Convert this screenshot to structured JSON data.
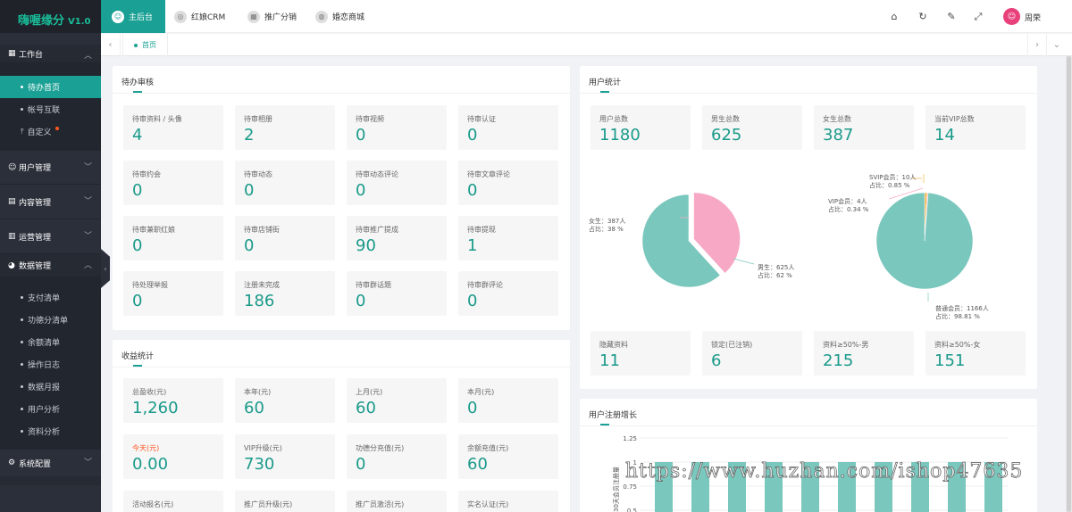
{
  "app": {
    "name": "嗨喔缘分",
    "version": "V1.0"
  },
  "sidebar": {
    "groups": [
      {
        "label": "工作台",
        "icon": "grid-icon",
        "items": [
          "待办首页",
          "帐号互联",
          "自定义"
        ]
      },
      {
        "label": "用户管理",
        "icon": "user-icon"
      },
      {
        "label": "内容管理",
        "icon": "doc-icon"
      },
      {
        "label": "运营管理",
        "icon": "chart-icon"
      },
      {
        "label": "数据管理",
        "icon": "pie-icon",
        "items": [
          "支付清单",
          "功德分清单",
          "余额清单",
          "操作日志",
          "数据月报",
          "用户分析",
          "资料分析"
        ]
      },
      {
        "label": "系统配置",
        "icon": "gear-icon"
      }
    ]
  },
  "topnav": [
    "主后台",
    "红娘CRM",
    "推广分销",
    "婚恋商城"
  ],
  "header": {
    "username": "周荣"
  },
  "tabs": {
    "home": "首页"
  },
  "pending": {
    "title": "待办审核",
    "tiles": [
      {
        "label": "待审资料 / 头像",
        "value": "4"
      },
      {
        "label": "待审相册",
        "value": "2"
      },
      {
        "label": "待审视频",
        "value": "0"
      },
      {
        "label": "待审认证",
        "value": "0"
      },
      {
        "label": "待审约会",
        "value": "0"
      },
      {
        "label": "待审动态",
        "value": "0"
      },
      {
        "label": "待审动态评论",
        "value": "0"
      },
      {
        "label": "待审文章评论",
        "value": "0"
      },
      {
        "label": "待审兼职红娘",
        "value": "0"
      },
      {
        "label": "待审店铺街",
        "value": "0"
      },
      {
        "label": "待审推广提成",
        "value": "90"
      },
      {
        "label": "待审提现",
        "value": "1"
      },
      {
        "label": "待处理举报",
        "value": "0"
      },
      {
        "label": "注册未完成",
        "value": "186"
      },
      {
        "label": "待审群话题",
        "value": "0"
      },
      {
        "label": "待审群评论",
        "value": "0"
      }
    ]
  },
  "income": {
    "title": "收益统计",
    "tiles": [
      {
        "label": "总盈收(元)",
        "value": "1,260"
      },
      {
        "label": "本年(元)",
        "value": "60"
      },
      {
        "label": "上月(元)",
        "value": "60"
      },
      {
        "label": "本月(元)",
        "value": "0"
      },
      {
        "label": "今天(元)",
        "value": "0.00"
      },
      {
        "label": "VIP升级(元)",
        "value": "730"
      },
      {
        "label": "功德分充值(元)",
        "value": "0"
      },
      {
        "label": "余额充值(元)",
        "value": "60"
      },
      {
        "label": "活动报名(元)",
        "value": ""
      },
      {
        "label": "推广员升级(元)",
        "value": ""
      },
      {
        "label": "推广员激活(元)",
        "value": ""
      },
      {
        "label": "实名认证(元)",
        "value": ""
      }
    ]
  },
  "userstats": {
    "title": "用户统计",
    "tiles": [
      {
        "label": "用户总数",
        "value": "1180"
      },
      {
        "label": "男生总数",
        "value": "625"
      },
      {
        "label": "女生总数",
        "value": "387"
      },
      {
        "label": "当前VIP总数",
        "value": "14"
      }
    ],
    "tiles2": [
      {
        "label": "隐藏资料",
        "value": "11"
      },
      {
        "label": "锁定(已注销)",
        "value": "6"
      },
      {
        "label": "资料≥50%-男",
        "value": "215"
      },
      {
        "label": "资料≥50%-女",
        "value": "151"
      }
    ],
    "pie1_labels": {
      "female": [
        "女生：387人",
        "占比：38 %"
      ],
      "male": [
        "男生：625人",
        "占比：62 %"
      ]
    },
    "pie2_labels": {
      "svip": [
        "SVIP会员：10人",
        "占比：0.85 %"
      ],
      "vip": [
        "VIP会员：4人",
        "占比：0.34 %"
      ],
      "normal": [
        "普通会员：1166人",
        "占比：98.81 %"
      ]
    }
  },
  "growth": {
    "title": "用户注册增长",
    "ylabel": "30天会员注册量",
    "yticks": [
      "1.25",
      "1",
      "0.75",
      "0.5"
    ]
  },
  "watermark": "https://www.huzhan.com/ishop47635",
  "colors": {
    "accent": "#1aa094",
    "teal": "#7ac7bd",
    "pink": "#f7a8c4",
    "orange": "#f2b544",
    "sidebar": "#2b2f3a"
  },
  "chart_data": [
    {
      "type": "pie",
      "series": [
        {
          "values": [
            387,
            625
          ]
        }
      ],
      "categories": [
        "女生",
        "男生"
      ],
      "colors": [
        "#f7a8c4",
        "#7ac7bd"
      ]
    },
    {
      "type": "pie",
      "series": [
        {
          "values": [
            10,
            4,
            1166
          ]
        }
      ],
      "categories": [
        "SVIP会员",
        "VIP会员",
        "普通会员"
      ],
      "colors": [
        "#f2b544",
        "#f7a8c4",
        "#7ac7bd"
      ]
    },
    {
      "type": "bar",
      "ylabel": "30天会员注册量",
      "yticks": [
        0.5,
        0.75,
        1,
        1.25
      ],
      "ylim": [
        0.5,
        1.25
      ],
      "values": [
        1,
        1,
        1,
        1,
        1,
        1,
        1,
        1,
        1,
        1
      ]
    }
  ]
}
